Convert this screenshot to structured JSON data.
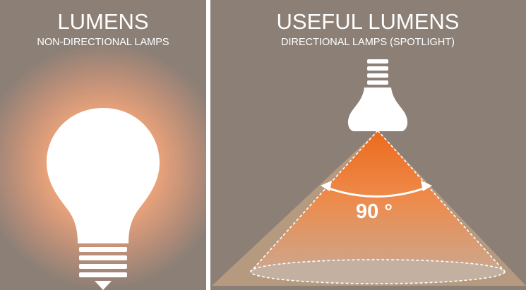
{
  "panels": [
    {
      "title": "LUMENS",
      "subtitle": "NON-DIRECTIONAL LAMPS"
    },
    {
      "title": "USEFUL LUMENS",
      "subtitle": "DIRECTIONAL LAMPS (SPOTLIGHT)",
      "angle_label": "90 °"
    }
  ]
}
